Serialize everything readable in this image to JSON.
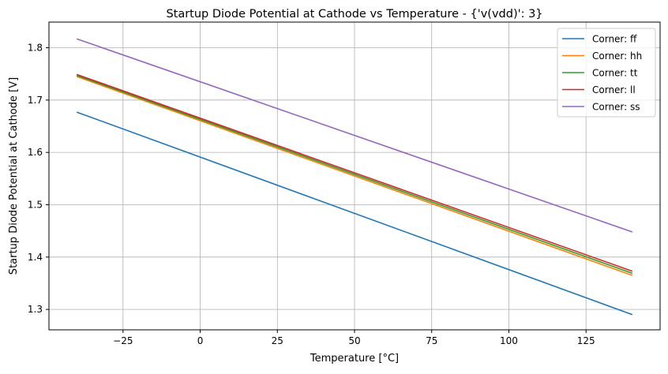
{
  "chart_data": {
    "type": "line",
    "title": "Startup Diode Potential at Cathode vs Temperature - {'v(vdd)': 3}",
    "xlabel": "Temperature [°C]",
    "ylabel": "Startup Diode Potential at Cathode [V]",
    "xlim": [
      -49,
      149
    ],
    "ylim": [
      1.261,
      1.849
    ],
    "xticks": [
      -25,
      0,
      25,
      50,
      75,
      100,
      125
    ],
    "yticks": [
      1.3,
      1.4,
      1.5,
      1.6,
      1.7,
      1.8
    ],
    "xtick_labels": [
      "−25",
      "0",
      "25",
      "50",
      "75",
      "100",
      "125"
    ],
    "ytick_labels": [
      "1.3",
      "1.4",
      "1.5",
      "1.6",
      "1.7",
      "1.8"
    ],
    "grid": true,
    "legend_position": "top-right",
    "x": [
      -40,
      140
    ],
    "series": [
      {
        "name": "Corner: ff",
        "color": "#1f77b4",
        "values": [
          1.677,
          1.29
        ]
      },
      {
        "name": "Corner: hh",
        "color": "#ff7f0e",
        "values": [
          1.745,
          1.365
        ]
      },
      {
        "name": "Corner: tt",
        "color": "#2ca02c",
        "values": [
          1.747,
          1.369
        ]
      },
      {
        "name": "Corner: ll",
        "color": "#d62728",
        "values": [
          1.749,
          1.373
        ]
      },
      {
        "name": "Corner: ss",
        "color": "#9467bd",
        "values": [
          1.817,
          1.448
        ]
      }
    ]
  }
}
